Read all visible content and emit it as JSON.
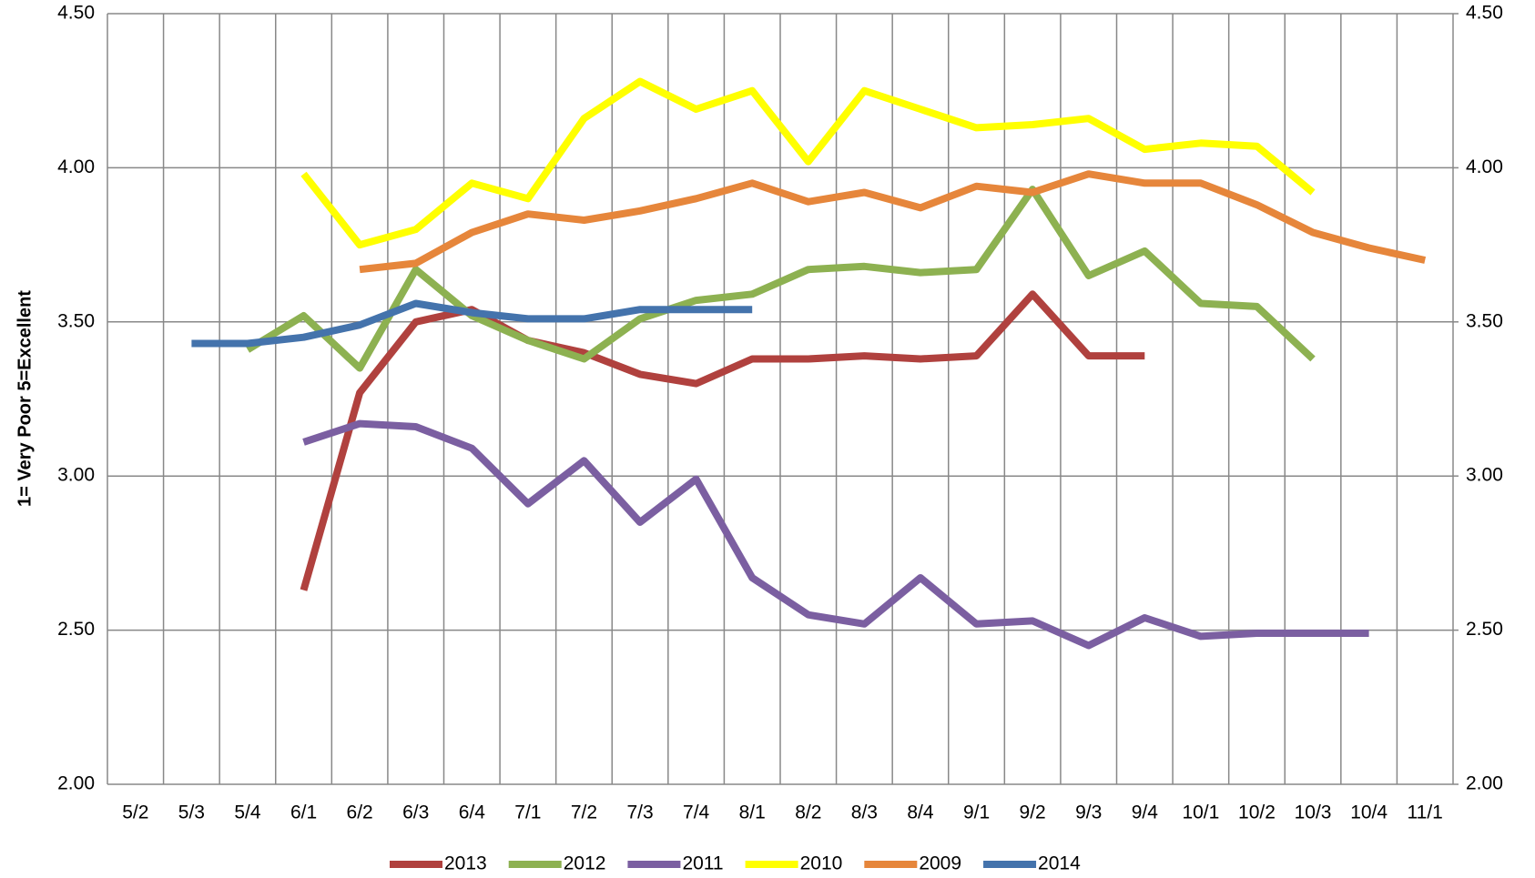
{
  "chart_data": {
    "type": "line",
    "y_label": "1= Very Poor  5=Excellent",
    "categories": [
      "5/2",
      "5/3",
      "5/4",
      "6/1",
      "6/2",
      "6/3",
      "6/4",
      "7/1",
      "7/2",
      "7/3",
      "7/4",
      "8/1",
      "8/2",
      "8/3",
      "8/4",
      "9/1",
      "9/2",
      "9/3",
      "9/4",
      "10/1",
      "10/2",
      "10/3",
      "10/4",
      "11/1"
    ],
    "series": [
      {
        "name": "2013",
        "color": "#b0413e",
        "values": [
          null,
          null,
          null,
          2.63,
          3.27,
          3.5,
          3.54,
          3.44,
          3.4,
          3.33,
          3.3,
          3.38,
          3.38,
          3.39,
          3.38,
          3.39,
          3.59,
          3.39,
          3.39,
          null,
          null,
          null,
          null,
          null
        ]
      },
      {
        "name": "2012",
        "color": "#8db151",
        "values": [
          null,
          null,
          3.41,
          3.52,
          3.35,
          3.67,
          3.52,
          3.44,
          3.38,
          3.51,
          3.57,
          3.59,
          3.67,
          3.68,
          3.66,
          3.67,
          3.93,
          3.65,
          3.73,
          3.56,
          3.55,
          3.38,
          null,
          null
        ]
      },
      {
        "name": "2011",
        "color": "#7b5fa1",
        "values": [
          null,
          null,
          null,
          3.11,
          3.17,
          3.16,
          3.09,
          2.91,
          3.05,
          2.85,
          2.99,
          2.67,
          2.55,
          2.52,
          2.67,
          2.52,
          2.53,
          2.45,
          2.54,
          2.48,
          2.49,
          2.49,
          2.49,
          null
        ]
      },
      {
        "name": "2010",
        "color": "#ffff00",
        "values": [
          null,
          null,
          null,
          3.98,
          3.75,
          3.8,
          3.95,
          3.9,
          4.16,
          4.28,
          4.19,
          4.25,
          4.02,
          4.25,
          4.19,
          4.13,
          4.14,
          4.16,
          4.06,
          4.08,
          4.07,
          3.92,
          null,
          null
        ]
      },
      {
        "name": "2009",
        "color": "#e6863b",
        "values": [
          null,
          null,
          null,
          null,
          3.67,
          3.69,
          3.79,
          3.85,
          3.83,
          3.86,
          3.9,
          3.95,
          3.89,
          3.92,
          3.87,
          3.94,
          3.92,
          3.98,
          3.95,
          3.95,
          3.88,
          3.79,
          3.74,
          3.7
        ]
      },
      {
        "name": "2014",
        "color": "#4473ac",
        "values": [
          null,
          3.43,
          3.43,
          3.45,
          3.49,
          3.56,
          3.53,
          3.51,
          3.51,
          3.54,
          3.54,
          3.54,
          null,
          null,
          null,
          null,
          null,
          null,
          null,
          null,
          null,
          null,
          null,
          null
        ]
      }
    ],
    "ylim": [
      2.0,
      4.5
    ],
    "yticks": [
      {
        "value": 2.0,
        "label": "2.00"
      },
      {
        "value": 2.5,
        "label": "2.50"
      },
      {
        "value": 3.0,
        "label": "3.00"
      },
      {
        "value": 3.5,
        "label": "3.50"
      },
      {
        "value": 4.0,
        "label": "4.00"
      },
      {
        "value": 4.5,
        "label": "4.50"
      }
    ],
    "y2lim": [
      2.0,
      4.5
    ],
    "y2ticks": [
      {
        "value": 2.0,
        "label": "2.00"
      },
      {
        "value": 2.5,
        "label": "2.50"
      },
      {
        "value": 3.0,
        "label": "3.00"
      },
      {
        "value": 3.5,
        "label": "3.50"
      },
      {
        "value": 4.0,
        "label": "4.00"
      },
      {
        "value": 4.5,
        "label": "4.50"
      }
    ],
    "grid": true,
    "legend": "bottom"
  }
}
